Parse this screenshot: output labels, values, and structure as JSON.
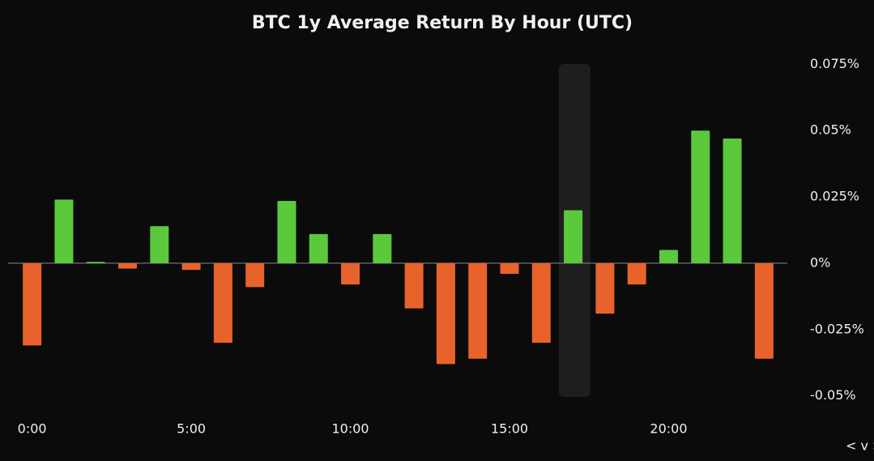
{
  "chart_data": {
    "type": "bar",
    "title": "BTC 1y Average Return By Hour (UTC)",
    "categories": [
      "0:00",
      null,
      null,
      null,
      null,
      "5:00",
      null,
      null,
      null,
      null,
      "10:00",
      null,
      null,
      null,
      null,
      "15:00",
      null,
      null,
      null,
      null,
      "20:00",
      null,
      null,
      null
    ],
    "values": [
      -0.031,
      0.024,
      0.0005,
      -0.002,
      0.014,
      -0.0025,
      -0.03,
      -0.009,
      0.0235,
      0.011,
      -0.008,
      0.011,
      -0.017,
      -0.038,
      -0.036,
      -0.004,
      -0.03,
      0.02,
      -0.019,
      -0.008,
      0.005,
      0.05,
      0.047,
      -0.036
    ],
    "positive_color": "#5cc83c",
    "negative_color": "#e8622c",
    "ylim": [
      -0.055,
      0.08
    ],
    "yticks": [
      {
        "value": -0.05,
        "label": "-0.05%"
      },
      {
        "value": -0.025,
        "label": "-0.025%"
      },
      {
        "value": 0,
        "label": "0%"
      },
      {
        "value": 0.025,
        "label": "0.025%"
      },
      {
        "value": 0.05,
        "label": "0.05%"
      },
      {
        "value": 0.075,
        "label": "0.075%"
      }
    ],
    "nav": "< v >"
  }
}
